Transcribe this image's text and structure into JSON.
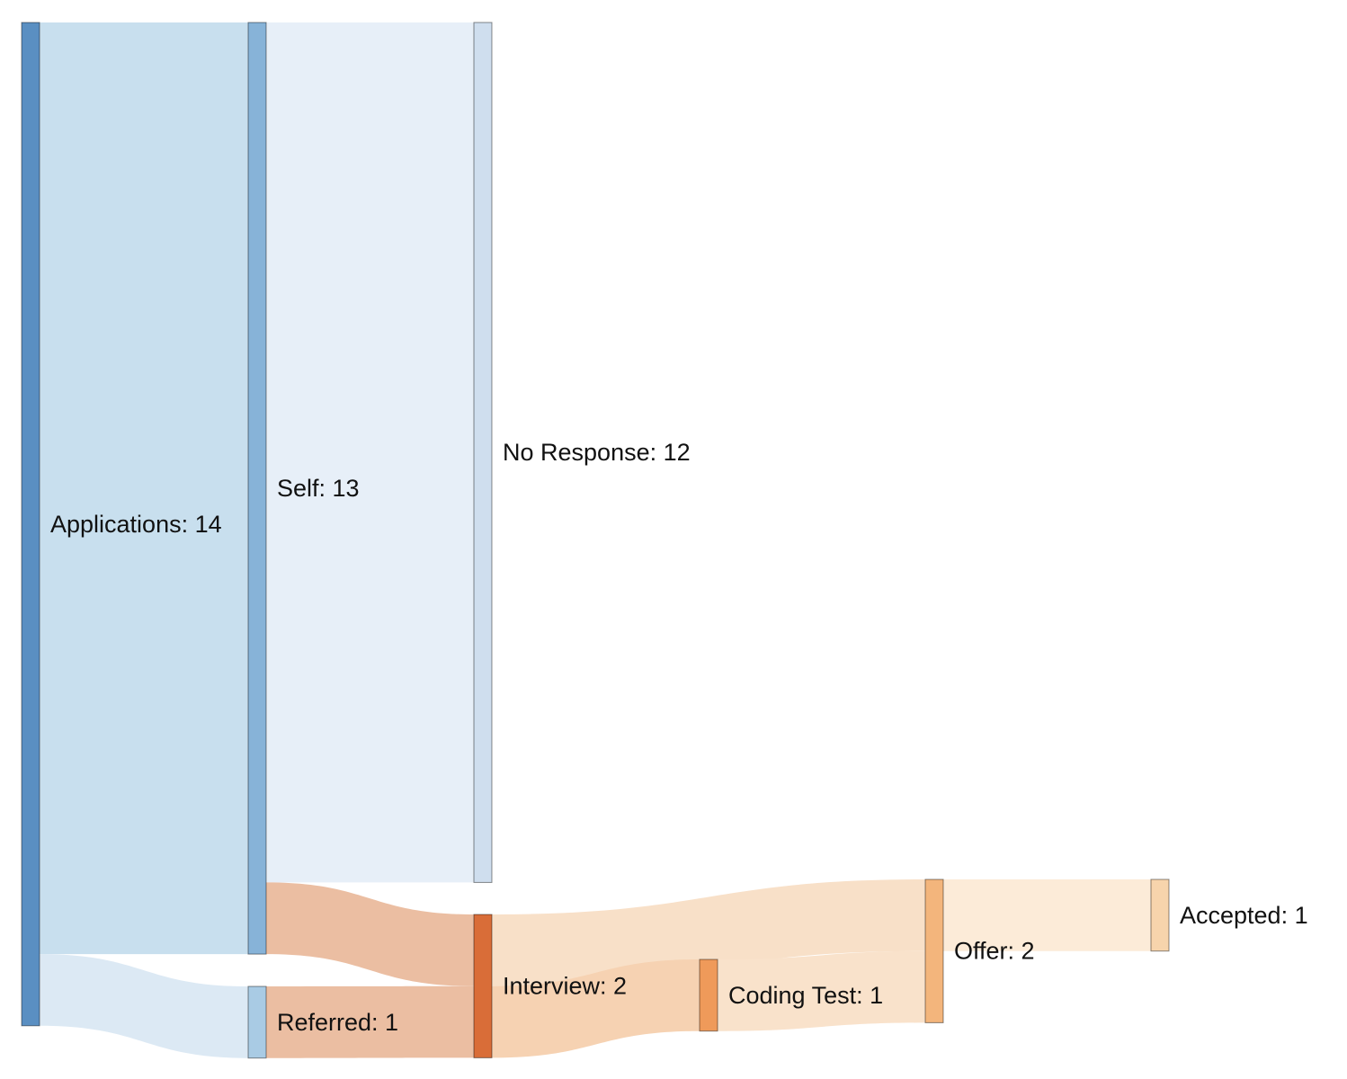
{
  "chart_data": {
    "type": "sankey",
    "title": "",
    "nodes": [
      {
        "id": "applications",
        "name": "Applications",
        "value": 14,
        "label": "Applications: 14",
        "color": "#5a8fc2"
      },
      {
        "id": "self",
        "name": "Self",
        "value": 13,
        "label": "Self: 13",
        "color": "#87b3d8"
      },
      {
        "id": "referred",
        "name": "Referred",
        "value": 1,
        "label": "Referred: 1",
        "color": "#a9cbe4"
      },
      {
        "id": "no_response",
        "name": "No Response",
        "value": 12,
        "label": "No Response: 12",
        "color": "#cfdeee"
      },
      {
        "id": "interview",
        "name": "Interview",
        "value": 2,
        "label": "Interview: 2",
        "color": "#d96d38"
      },
      {
        "id": "coding_test",
        "name": "Coding Test",
        "value": 1,
        "label": "Coding Test: 1",
        "color": "#ef9a5a"
      },
      {
        "id": "offer",
        "name": "Offer",
        "value": 2,
        "label": "Offer: 2",
        "color": "#f3b57c"
      },
      {
        "id": "accepted",
        "name": "Accepted",
        "value": 1,
        "label": "Accepted: 1",
        "color": "#f7d4ac"
      }
    ],
    "links": [
      {
        "source": "applications",
        "target": "self",
        "value": 13,
        "color": "#c8dfee"
      },
      {
        "source": "applications",
        "target": "referred",
        "value": 1,
        "color": "#dce9f4"
      },
      {
        "source": "self",
        "target": "no_response",
        "value": 12,
        "color": "#e7eff8"
      },
      {
        "source": "self",
        "target": "interview",
        "value": 1,
        "color": "#ebbea2"
      },
      {
        "source": "referred",
        "target": "interview",
        "value": 1,
        "color": "#ebbea2"
      },
      {
        "source": "interview",
        "target": "offer",
        "value": 1,
        "color": "#f8e0c8"
      },
      {
        "source": "interview",
        "target": "coding_test",
        "value": 1,
        "color": "#f6d2b2"
      },
      {
        "source": "coding_test",
        "target": "offer",
        "value": 1,
        "color": "#f9e2cb"
      },
      {
        "source": "offer",
        "target": "accepted",
        "value": 1,
        "color": "#fcebd8"
      }
    ]
  }
}
